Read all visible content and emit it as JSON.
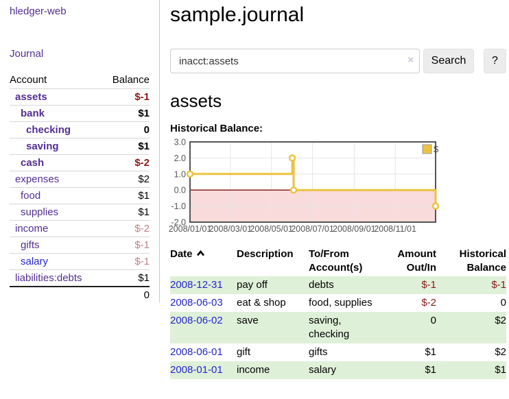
{
  "colors": {
    "link_purple": "#522e91",
    "link_blue": "#2525cd",
    "neg_strong": "#8b1717",
    "neg_soft": "#bf8080",
    "stripe_green": "#dff0d8",
    "row_border": "#d6d6d6",
    "divider": "#c9c9c9",
    "btn_bg": "#ececec",
    "clear_x": "#cbc3dc",
    "tick_text": "#545454"
  },
  "app": {
    "title": "hledger-web",
    "nav_journal": "Journal"
  },
  "sidebar": {
    "table_headers": {
      "account": "Account",
      "balance": "Balance"
    },
    "accounts": [
      {
        "name": "assets",
        "balance": "$-1",
        "indent": 1,
        "bold": true,
        "balance_class": "neg-strong"
      },
      {
        "name": "bank",
        "balance": "$1",
        "indent": 2,
        "bold": true,
        "balance_class": "pos"
      },
      {
        "name": "checking",
        "balance": "0",
        "indent": 3,
        "bold": true,
        "balance_class": "pos"
      },
      {
        "name": "saving",
        "balance": "$1",
        "indent": 3,
        "bold": true,
        "balance_class": "pos"
      },
      {
        "name": "cash",
        "balance": "$-2",
        "indent": 2,
        "bold": true,
        "balance_class": "neg-strong"
      },
      {
        "name": "expenses",
        "balance": "$2",
        "indent": 1,
        "bold": false,
        "balance_class": "pos"
      },
      {
        "name": "food",
        "balance": "$1",
        "indent": 2,
        "bold": false,
        "balance_class": "pos"
      },
      {
        "name": "supplies",
        "balance": "$1",
        "indent": 2,
        "bold": false,
        "balance_class": "pos"
      },
      {
        "name": "income",
        "balance": "$-2",
        "indent": 1,
        "bold": false,
        "balance_class": "neg-soft"
      },
      {
        "name": "gifts",
        "balance": "$-1",
        "indent": 2,
        "bold": false,
        "balance_class": "neg-soft"
      },
      {
        "name": "salary",
        "balance": "$-1",
        "indent": 2,
        "bold": false,
        "balance_class": "neg-soft",
        "link_blue": true
      },
      {
        "name": "liabilities:debts",
        "balance": "$1",
        "indent": 1,
        "bold": false,
        "balance_class": "pos"
      }
    ],
    "total": "0"
  },
  "header": {
    "title": "sample.journal"
  },
  "search": {
    "value": "inacct:assets",
    "clear_icon": "×",
    "button": "Search",
    "help_button": "?"
  },
  "account_page": {
    "title": "assets",
    "chart_label": "Historical Balance:"
  },
  "chart_data": {
    "type": "line",
    "title": "Historical Balance:",
    "step": true,
    "x_range": [
      "2008-01-01",
      "2008-12-31"
    ],
    "y_range": [
      -2,
      3
    ],
    "x_ticks": [
      {
        "date": "2008-01-01",
        "label": "2008/01/01"
      },
      {
        "date": "2008-03-01",
        "label": "2008/03/01"
      },
      {
        "date": "2008-05-01",
        "label": "2008/05/01"
      },
      {
        "date": "2008-07-01",
        "label": "2008/07/01"
      },
      {
        "date": "2008-09-01",
        "label": "2008/09/01"
      },
      {
        "date": "2008-11-01",
        "label": "2008/11/01"
      }
    ],
    "y_ticks": [
      {
        "value": 3,
        "label": "3.0"
      },
      {
        "value": 2,
        "label": "2.0"
      },
      {
        "value": 1,
        "label": "1.0"
      },
      {
        "value": 0,
        "label": "0.0"
      },
      {
        "value": -1,
        "label": "-1.0"
      },
      {
        "value": -2,
        "label": "-2.0"
      }
    ],
    "series": [
      {
        "name": "$",
        "color": "#edc240",
        "points": [
          [
            "2008-01-01",
            1
          ],
          [
            "2008-06-01",
            2
          ],
          [
            "2008-06-03",
            0
          ],
          [
            "2008-12-31",
            -1
          ]
        ]
      }
    ],
    "negative_fill": "#f9dbdb",
    "zero_line_color": "#8b1d1d",
    "grid_color": "#e6e6e6",
    "border_color": "#545454",
    "legend_position": "top-right",
    "grid": true
  },
  "register": {
    "headers": {
      "date": "Date",
      "description": "Description",
      "tofrom": "To/From Account(s)",
      "amount": "Amount Out/In",
      "balance": "Historical Balance"
    },
    "rows": [
      {
        "date": "2008-12-31",
        "description": "pay off",
        "accounts": "debts",
        "amount": "$-1",
        "balance": "$-1",
        "amount_neg": true,
        "balance_neg": true
      },
      {
        "date": "2008-06-03",
        "description": "eat & shop",
        "accounts": "food, supplies",
        "amount": "$-2",
        "balance": "0",
        "amount_neg": true,
        "balance_neg": false
      },
      {
        "date": "2008-06-02",
        "description": "save",
        "accounts": "saving, checking",
        "amount": "0",
        "balance": "$2",
        "amount_neg": false,
        "balance_neg": false
      },
      {
        "date": "2008-06-01",
        "description": "gift",
        "accounts": "gifts",
        "amount": "$1",
        "balance": "$2",
        "amount_neg": false,
        "balance_neg": false
      },
      {
        "date": "2008-01-01",
        "description": "income",
        "accounts": "salary",
        "amount": "$1",
        "balance": "$1",
        "amount_neg": false,
        "balance_neg": false
      }
    ]
  }
}
